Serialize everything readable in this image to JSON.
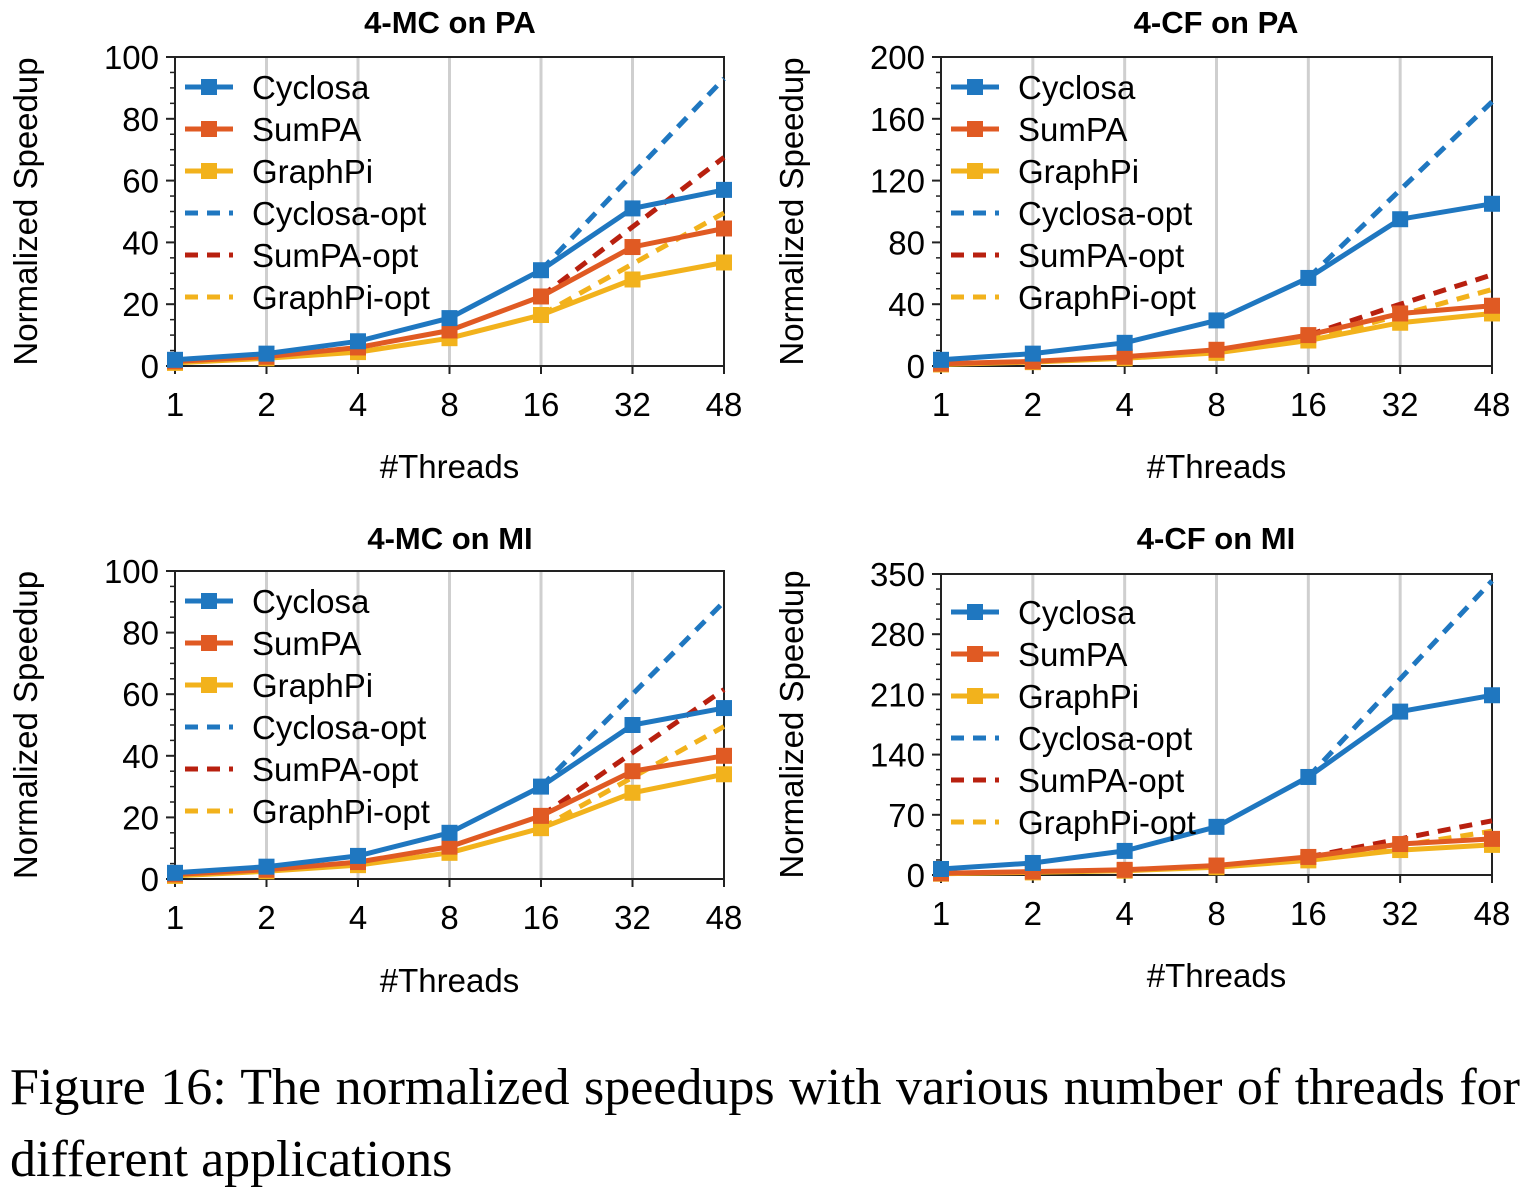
{
  "caption": "Figure 16: The normalized speedups with various number of threads for different applications",
  "series_styles": [
    {
      "name": "Cyclosa",
      "color": "#1f77c0",
      "dash": false,
      "marker": true
    },
    {
      "name": "SumPA",
      "color": "#e05a23",
      "dash": false,
      "marker": true
    },
    {
      "name": "GraphPi",
      "color": "#f2b21c",
      "dash": false,
      "marker": true
    },
    {
      "name": "Cyclosa-opt",
      "color": "#1f77c0",
      "dash": true,
      "marker": false
    },
    {
      "name": "SumPA-opt",
      "color": "#b8200f",
      "dash": true,
      "marker": false
    },
    {
      "name": "GraphPi-opt",
      "color": "#f2b21c",
      "dash": true,
      "marker": false
    }
  ],
  "chart_data": [
    {
      "type": "line",
      "title": "4-MC on PA",
      "xlabel": "#Threads",
      "ylabel": "Normalized Speedup",
      "categories": [
        "1",
        "2",
        "4",
        "8",
        "16",
        "32",
        "48"
      ],
      "ylim": [
        0,
        100
      ],
      "yticks": [
        0,
        20,
        40,
        60,
        80,
        100
      ],
      "grid": "vertical",
      "legend": "top-left",
      "series": [
        {
          "name": "Cyclosa",
          "values": [
            2,
            4,
            8,
            15.5,
            31,
            51,
            57
          ]
        },
        {
          "name": "SumPA",
          "values": [
            1.5,
            3,
            6,
            11.5,
            22.5,
            38.5,
            44.5
          ]
        },
        {
          "name": "GraphPi",
          "values": [
            1,
            2.5,
            4.5,
            9,
            16.5,
            28,
            33.5
          ]
        },
        {
          "name": "Cyclosa-opt",
          "values": [
            null,
            null,
            null,
            null,
            31,
            62,
            93
          ]
        },
        {
          "name": "SumPA-opt",
          "values": [
            null,
            null,
            null,
            null,
            22.5,
            45,
            67.5
          ]
        },
        {
          "name": "GraphPi-opt",
          "values": [
            null,
            null,
            null,
            null,
            16.5,
            33,
            49.5
          ]
        }
      ]
    },
    {
      "type": "line",
      "title": "4-CF on PA",
      "xlabel": "#Threads",
      "ylabel": "Normalized Speedup",
      "categories": [
        "1",
        "2",
        "4",
        "8",
        "16",
        "32",
        "48"
      ],
      "ylim": [
        0,
        200
      ],
      "yticks": [
        0,
        40,
        80,
        120,
        160,
        200
      ],
      "grid": "vertical",
      "legend": "top-left",
      "series": [
        {
          "name": "Cyclosa",
          "values": [
            4,
            8,
            15,
            29.5,
            57,
            95,
            105
          ]
        },
        {
          "name": "SumPA",
          "values": [
            1.5,
            3,
            6,
            10.5,
            20,
            34,
            39
          ]
        },
        {
          "name": "GraphPi",
          "values": [
            1,
            2.5,
            5,
            8.5,
            16.5,
            28,
            34
          ]
        },
        {
          "name": "Cyclosa-opt",
          "values": [
            null,
            null,
            null,
            null,
            57,
            114,
            171
          ]
        },
        {
          "name": "SumPA-opt",
          "values": [
            null,
            null,
            null,
            null,
            20,
            40,
            59
          ]
        },
        {
          "name": "GraphPi-opt",
          "values": [
            null,
            null,
            null,
            null,
            16.5,
            33,
            49.5
          ]
        }
      ]
    },
    {
      "type": "line",
      "title": "4-MC on MI",
      "xlabel": "#Threads",
      "ylabel": "Normalized Speedup",
      "categories": [
        "1",
        "2",
        "4",
        "8",
        "16",
        "32",
        "48"
      ],
      "ylim": [
        0,
        100
      ],
      "yticks": [
        0,
        20,
        40,
        60,
        80,
        100
      ],
      "grid": "vertical",
      "legend": "top-left",
      "series": [
        {
          "name": "Cyclosa",
          "values": [
            2,
            4,
            7.5,
            15,
            30,
            50,
            55.5
          ]
        },
        {
          "name": "SumPA",
          "values": [
            1.5,
            3,
            5.5,
            10.5,
            20.5,
            35,
            40
          ]
        },
        {
          "name": "GraphPi",
          "values": [
            1,
            2.5,
            4.5,
            8.5,
            16.5,
            28,
            34
          ]
        },
        {
          "name": "Cyclosa-opt",
          "values": [
            null,
            null,
            null,
            null,
            30,
            60,
            90
          ]
        },
        {
          "name": "SumPA-opt",
          "values": [
            null,
            null,
            null,
            null,
            20.5,
            41,
            61.5
          ]
        },
        {
          "name": "GraphPi-opt",
          "values": [
            null,
            null,
            null,
            null,
            16.5,
            33,
            49.5
          ]
        }
      ]
    },
    {
      "type": "line",
      "title": "4-CF on MI",
      "xlabel": "#Threads",
      "ylabel": "Normalized Speedup",
      "categories": [
        "1",
        "2",
        "4",
        "8",
        "16",
        "32",
        "48"
      ],
      "ylim": [
        0,
        350
      ],
      "yticks": [
        0,
        70,
        140,
        210,
        280,
        350
      ],
      "grid": "vertical",
      "legend": "top-left",
      "series": [
        {
          "name": "Cyclosa",
          "values": [
            7,
            14,
            28,
            56,
            114,
            190,
            209
          ]
        },
        {
          "name": "SumPA",
          "values": [
            2,
            4,
            6,
            11,
            21,
            36,
            42
          ]
        },
        {
          "name": "GraphPi",
          "values": [
            1.5,
            3,
            5,
            9,
            17,
            29,
            35
          ]
        },
        {
          "name": "Cyclosa-opt",
          "values": [
            null,
            null,
            null,
            null,
            114,
            228,
            342
          ]
        },
        {
          "name": "SumPA-opt",
          "values": [
            null,
            null,
            null,
            null,
            21,
            42,
            63
          ]
        },
        {
          "name": "GraphPi-opt",
          "values": [
            null,
            null,
            null,
            null,
            17,
            34,
            51
          ]
        }
      ]
    }
  ]
}
